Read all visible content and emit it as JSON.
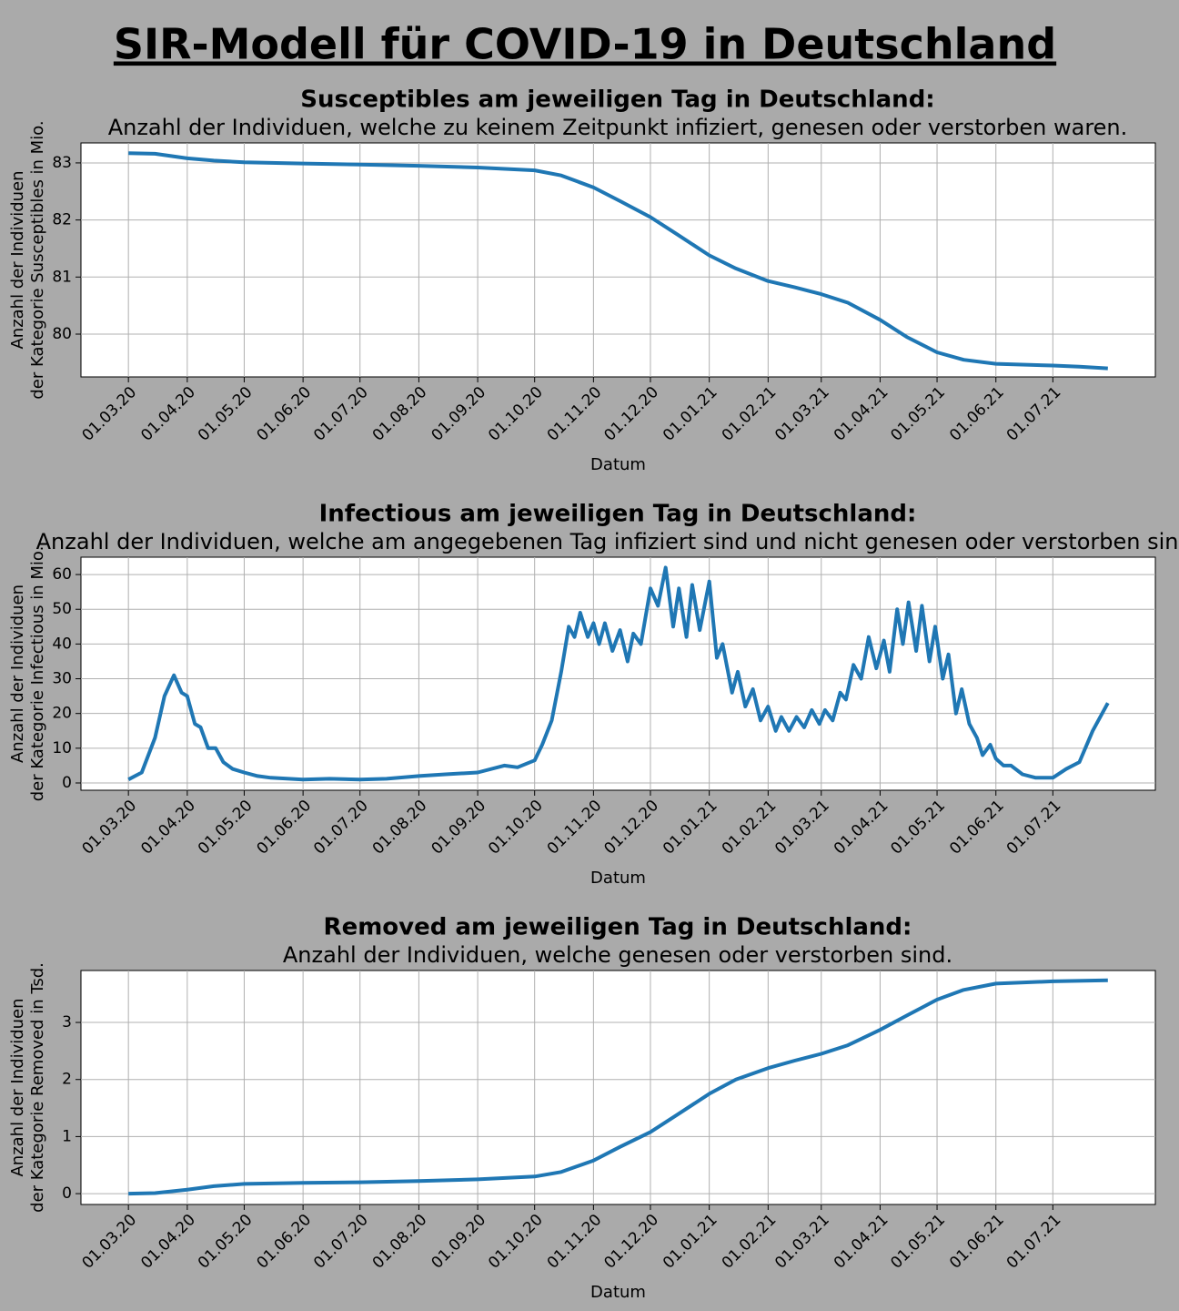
{
  "title": "SIR-Modell für COVID-19 in Deutschland",
  "chart_data": [
    {
      "type": "line",
      "title": "Susceptibles am jeweiligen Tag in Deutschland:",
      "subtitle": "Anzahl der Individuen, welche zu keinem Zeitpunkt infiziert, genesen oder verstorben waren.",
      "ylabel": [
        "Anzahl der Individuen",
        "der Kategorie Susceptibles in Mio."
      ],
      "xlabel": "Datum",
      "color": "#1f77b4",
      "grid": true,
      "xlim": [
        "05.02.20",
        "24.08.21"
      ],
      "xticks": [
        "01.03.20",
        "01.04.20",
        "01.05.20",
        "01.06.20",
        "01.07.20",
        "01.08.20",
        "01.09.20",
        "01.10.20",
        "01.11.20",
        "01.12.20",
        "01.01.21",
        "01.02.21",
        "01.03.21",
        "01.04.21",
        "01.05.21",
        "01.06.21",
        "01.07.21"
      ],
      "ylim": [
        79.25,
        83.35
      ],
      "yticks": [
        80,
        81,
        82,
        83
      ],
      "x": [
        "01.03.20",
        "15.03.20",
        "01.04.20",
        "15.04.20",
        "01.05.20",
        "01.06.20",
        "01.07.20",
        "01.08.20",
        "01.09.20",
        "01.10.20",
        "15.10.20",
        "01.11.20",
        "15.11.20",
        "01.12.20",
        "15.12.20",
        "01.01.21",
        "15.01.21",
        "01.02.21",
        "15.02.21",
        "01.03.21",
        "15.03.21",
        "01.04.21",
        "15.04.21",
        "01.05.21",
        "15.05.21",
        "01.06.21",
        "01.07.21",
        "15.07.21",
        "30.07.21"
      ],
      "values": [
        83.17,
        83.16,
        83.08,
        83.04,
        83.01,
        82.99,
        82.97,
        82.95,
        82.92,
        82.87,
        82.78,
        82.57,
        82.33,
        82.05,
        81.75,
        81.38,
        81.15,
        80.93,
        80.82,
        80.7,
        80.55,
        80.25,
        79.95,
        79.68,
        79.55,
        79.48,
        79.45,
        79.43,
        79.4
      ]
    },
    {
      "type": "line",
      "title": "Infectious am jeweiligen Tag in Deutschland:",
      "subtitle": "Anzahl der Individuen, welche am angegebenen Tag infiziert sind und nicht genesen oder verstorben sind.",
      "ylabel": [
        "Anzahl der Individuen",
        "der Kategorie Infectious in Mio."
      ],
      "xlabel": "Datum",
      "color": "#1f77b4",
      "grid": true,
      "xlim": [
        "05.02.20",
        "24.08.21"
      ],
      "xticks": [
        "01.03.20",
        "01.04.20",
        "01.05.20",
        "01.06.20",
        "01.07.20",
        "01.08.20",
        "01.09.20",
        "01.10.20",
        "01.11.20",
        "01.12.20",
        "01.01.21",
        "01.02.21",
        "01.03.21",
        "01.04.21",
        "01.05.21",
        "01.06.21",
        "01.07.21"
      ],
      "ylim": [
        -2.1,
        65
      ],
      "yticks": [
        0,
        10,
        20,
        30,
        40,
        50,
        60
      ],
      "x": [
        "01.03.20",
        "08.03.20",
        "15.03.20",
        "20.03.20",
        "25.03.20",
        "29.03.20",
        "01.04.20",
        "05.04.20",
        "08.04.20",
        "12.04.20",
        "16.04.20",
        "20.04.20",
        "25.04.20",
        "01.05.20",
        "08.05.20",
        "15.05.20",
        "01.06.20",
        "15.06.20",
        "01.07.20",
        "15.07.20",
        "01.08.20",
        "15.08.20",
        "01.09.20",
        "15.09.20",
        "22.09.20",
        "01.10.20",
        "05.10.20",
        "10.10.20",
        "15.10.20",
        "19.10.20",
        "22.10.20",
        "25.10.20",
        "29.10.20",
        "01.11.20",
        "04.11.20",
        "07.11.20",
        "11.11.20",
        "15.11.20",
        "19.11.20",
        "22.11.20",
        "26.11.20",
        "01.12.20",
        "05.12.20",
        "09.12.20",
        "13.12.20",
        "16.12.20",
        "20.12.20",
        "23.12.20",
        "27.12.20",
        "01.01.21",
        "05.01.21",
        "08.01.21",
        "13.01.21",
        "16.01.21",
        "20.01.21",
        "24.01.21",
        "28.01.21",
        "01.02.21",
        "05.02.21",
        "08.02.21",
        "12.02.21",
        "16.02.21",
        "20.02.21",
        "24.02.21",
        "28.02.21",
        "03.03.21",
        "07.03.21",
        "11.03.21",
        "14.03.21",
        "18.03.21",
        "22.03.21",
        "26.03.21",
        "30.03.21",
        "03.04.21",
        "06.04.21",
        "10.04.21",
        "13.04.21",
        "16.04.21",
        "20.04.21",
        "23.04.21",
        "27.04.21",
        "30.04.21",
        "04.05.21",
        "07.05.21",
        "11.05.21",
        "14.05.21",
        "18.05.21",
        "22.05.21",
        "25.05.21",
        "29.05.21",
        "01.06.21",
        "05.06.21",
        "09.06.21",
        "15.06.21",
        "22.06.21",
        "01.07.21",
        "08.07.21",
        "15.07.21",
        "22.07.21",
        "30.07.21"
      ],
      "values": [
        1,
        3,
        13,
        25,
        31,
        26,
        25,
        17,
        16,
        10,
        10,
        6,
        4,
        3,
        2,
        1.5,
        1,
        1.2,
        1,
        1.2,
        2,
        2.5,
        3,
        5,
        4.5,
        6.5,
        11,
        18,
        32,
        45,
        42,
        49,
        42,
        46,
        40,
        46,
        38,
        44,
        35,
        43,
        40,
        56,
        51,
        62,
        45,
        56,
        42,
        57,
        44,
        58,
        36,
        40,
        26,
        32,
        22,
        27,
        18,
        22,
        15,
        19,
        15,
        19,
        16,
        21,
        17,
        21,
        18,
        26,
        24,
        34,
        30,
        42,
        33,
        41,
        32,
        50,
        40,
        52,
        38,
        51,
        35,
        45,
        30,
        37,
        20,
        27,
        17,
        13,
        8,
        11,
        7,
        5,
        5,
        2.5,
        1.5,
        1.5,
        4,
        6,
        15,
        23
      ]
    },
    {
      "type": "line",
      "title": "Removed am jeweiligen Tag in Deutschland:",
      "subtitle": "Anzahl der Individuen, welche genesen oder verstorben sind.",
      "ylabel": [
        "Anzahl der Individuen",
        "der Kategorie Removed in Tsd."
      ],
      "xlabel": "Datum",
      "color": "#1f77b4",
      "grid": true,
      "xlim": [
        "05.02.20",
        "24.08.21"
      ],
      "xticks": [
        "01.03.20",
        "01.04.20",
        "01.05.20",
        "01.06.20",
        "01.07.20",
        "01.08.20",
        "01.09.20",
        "01.10.20",
        "01.11.20",
        "01.12.20",
        "01.01.21",
        "01.02.21",
        "01.03.21",
        "01.04.21",
        "01.05.21",
        "01.06.21",
        "01.07.21"
      ],
      "ylim": [
        -0.19,
        3.91
      ],
      "yticks": [
        0,
        1,
        2,
        3
      ],
      "x": [
        "01.03.20",
        "15.03.20",
        "01.04.20",
        "15.04.20",
        "01.05.20",
        "01.06.20",
        "01.07.20",
        "01.08.20",
        "01.09.20",
        "01.10.20",
        "15.10.20",
        "01.11.20",
        "15.11.20",
        "01.12.20",
        "15.12.20",
        "01.01.21",
        "15.01.21",
        "01.02.21",
        "15.02.21",
        "01.03.21",
        "15.03.21",
        "01.04.21",
        "15.04.21",
        "01.05.21",
        "15.05.21",
        "01.06.21",
        "01.07.21",
        "30.07.21"
      ],
      "values": [
        0,
        0.01,
        0.07,
        0.13,
        0.17,
        0.19,
        0.2,
        0.22,
        0.25,
        0.3,
        0.38,
        0.58,
        0.82,
        1.08,
        1.38,
        1.75,
        2.0,
        2.2,
        2.33,
        2.45,
        2.6,
        2.87,
        3.12,
        3.4,
        3.57,
        3.68,
        3.72,
        3.74
      ]
    }
  ]
}
